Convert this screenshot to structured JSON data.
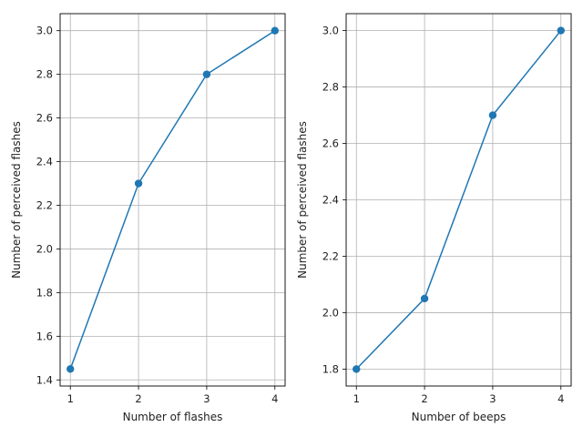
{
  "chart_data": [
    {
      "type": "line",
      "title": "",
      "xlabel": "Number of flashes",
      "ylabel": "Number of perceived flashes",
      "x": [
        1,
        2,
        3,
        4
      ],
      "series": [
        {
          "values": [
            1.45,
            2.3,
            2.8,
            3.0
          ]
        }
      ],
      "xlim": [
        0.85,
        4.15
      ],
      "ylim": [
        1.372,
        3.078
      ],
      "xticks": [
        "1",
        "2",
        "3",
        "4"
      ],
      "yticks": [
        "1.4",
        "1.6",
        "1.8",
        "2.0",
        "2.2",
        "2.4",
        "2.6",
        "2.8",
        "3.0"
      ],
      "grid": true,
      "marker": "circle",
      "color": "#1f77b4"
    },
    {
      "type": "line",
      "title": "",
      "xlabel": "Number of beeps",
      "ylabel": "Number of perceived flashes",
      "x": [
        1,
        2,
        3,
        4
      ],
      "series": [
        {
          "values": [
            1.8,
            2.05,
            2.7,
            3.0
          ]
        }
      ],
      "xlim": [
        0.85,
        4.15
      ],
      "ylim": [
        1.74,
        3.06
      ],
      "xticks": [
        "1",
        "2",
        "3",
        "4"
      ],
      "yticks": [
        "1.8",
        "2.0",
        "2.2",
        "2.4",
        "2.6",
        "2.8",
        "3.0"
      ],
      "grid": true,
      "marker": "circle",
      "color": "#1f77b4"
    }
  ]
}
